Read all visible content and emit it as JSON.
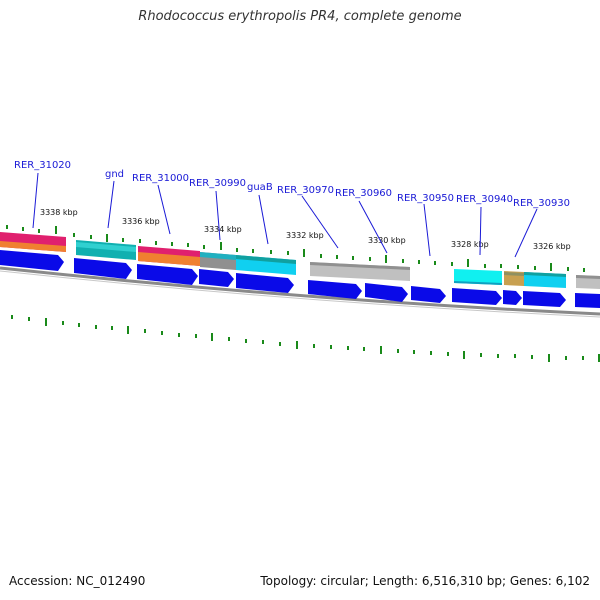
{
  "title": "Rhodococcus erythropolis PR4, complete genome",
  "accession": "Accession: NC_012490",
  "summary": "Topology: circular; Length: 6,516,310 bp; Genes: 6,102",
  "colors": {
    "gene_blue": "#0a0ae8",
    "backbone": "#8a8a8a",
    "tick_green": "#1a8a1a",
    "label_blue": "#1a1ad6"
  },
  "ticks": [
    "3338 kbp",
    "3336 kbp",
    "3334 kbp",
    "3332 kbp",
    "3330 kbp",
    "3328 kbp",
    "3326 kbp"
  ],
  "gene_labels": [
    "RER_31020",
    "gnd",
    "RER_31000",
    "RER_30990",
    "guaB",
    "RER_30970",
    "RER_30960",
    "RER_30950",
    "RER_30940",
    "RER_30930"
  ]
}
